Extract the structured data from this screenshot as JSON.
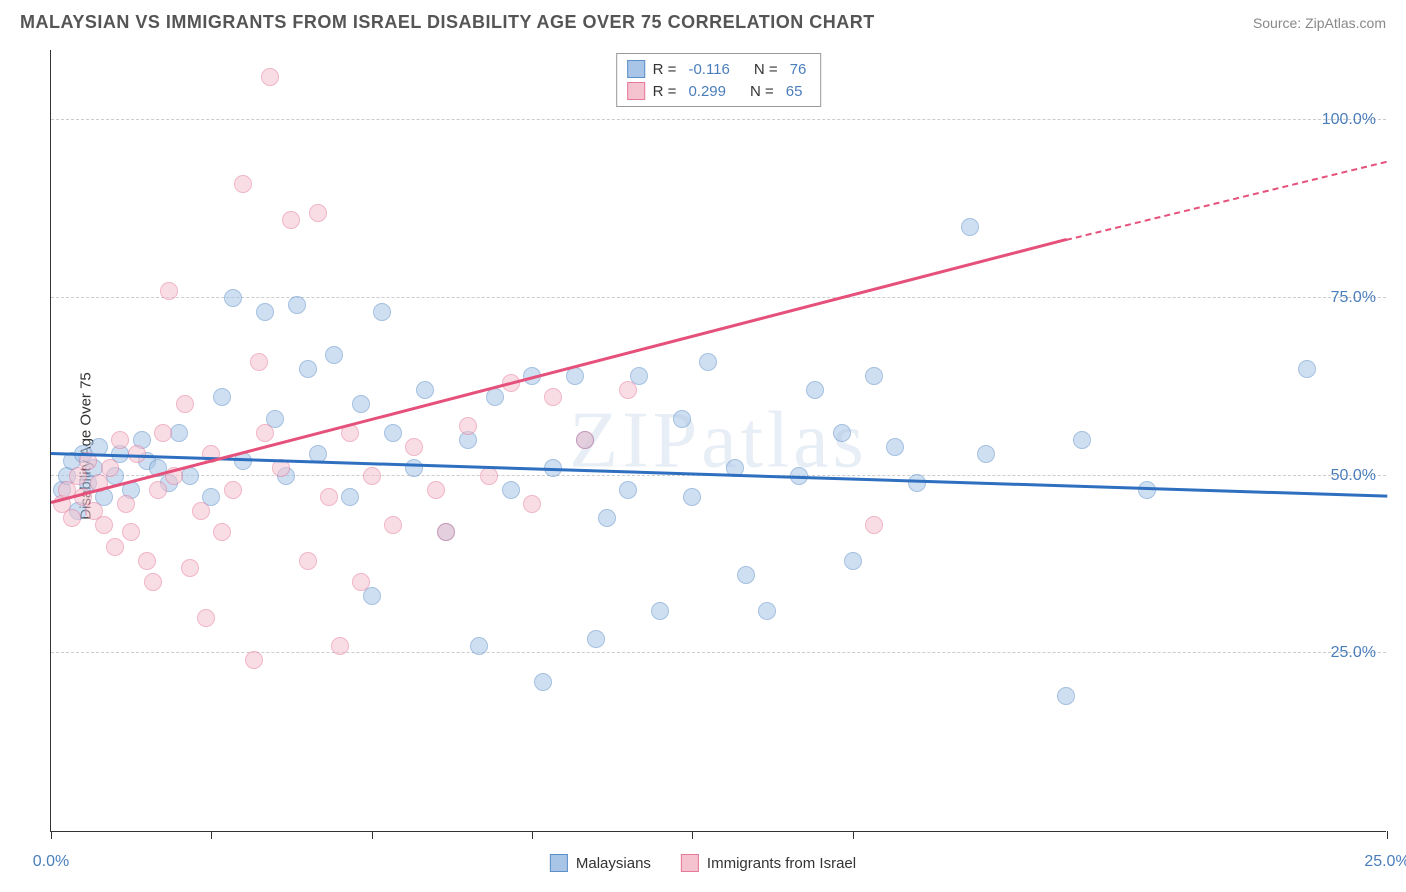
{
  "header": {
    "title": "MALAYSIAN VS IMMIGRANTS FROM ISRAEL DISABILITY AGE OVER 75 CORRELATION CHART",
    "source": "Source: ZipAtlas.com"
  },
  "watermark": "ZIPatlas",
  "chart": {
    "type": "scatter",
    "ylabel": "Disability Age Over 75",
    "xlim": [
      0,
      25
    ],
    "ylim": [
      0,
      110
    ],
    "xticks": [
      0,
      3,
      6,
      9,
      12,
      15,
      25
    ],
    "xtick_labels": {
      "0": "0.0%",
      "25": "25.0%"
    },
    "yticks": [
      25,
      50,
      75,
      100
    ],
    "ytick_labels": [
      "25.0%",
      "50.0%",
      "75.0%",
      "100.0%"
    ],
    "grid_color": "#cccccc",
    "background_color": "#ffffff",
    "marker_radius": 9,
    "marker_opacity": 0.55,
    "series": [
      {
        "name": "Malaysians",
        "color_fill": "#a8c5e8",
        "color_stroke": "#5b8fc7",
        "r": -0.116,
        "n": 76,
        "trend": {
          "x1": 0,
          "y1": 53,
          "x2": 25,
          "y2": 47,
          "color": "#2e6fc0",
          "width": 2.5
        },
        "points": [
          [
            0.2,
            48
          ],
          [
            0.3,
            50
          ],
          [
            0.4,
            52
          ],
          [
            0.5,
            45
          ],
          [
            0.6,
            53
          ],
          [
            0.7,
            49
          ],
          [
            0.8,
            51
          ],
          [
            0.9,
            54
          ],
          [
            1.0,
            47
          ],
          [
            1.2,
            50
          ],
          [
            1.3,
            53
          ],
          [
            1.5,
            48
          ],
          [
            1.7,
            55
          ],
          [
            1.8,
            52
          ],
          [
            2.0,
            51
          ],
          [
            2.2,
            49
          ],
          [
            2.4,
            56
          ],
          [
            2.6,
            50
          ],
          [
            3.0,
            47
          ],
          [
            3.2,
            61
          ],
          [
            3.4,
            75
          ],
          [
            3.6,
            52
          ],
          [
            4.0,
            73
          ],
          [
            4.2,
            58
          ],
          [
            4.4,
            50
          ],
          [
            4.6,
            74
          ],
          [
            4.8,
            65
          ],
          [
            5.0,
            53
          ],
          [
            5.3,
            67
          ],
          [
            5.6,
            47
          ],
          [
            5.8,
            60
          ],
          [
            6.0,
            33
          ],
          [
            6.2,
            73
          ],
          [
            6.4,
            56
          ],
          [
            6.8,
            51
          ],
          [
            7.0,
            62
          ],
          [
            7.4,
            42
          ],
          [
            7.8,
            55
          ],
          [
            8.0,
            26
          ],
          [
            8.3,
            61
          ],
          [
            8.6,
            48
          ],
          [
            9.0,
            64
          ],
          [
            9.2,
            21
          ],
          [
            9.4,
            51
          ],
          [
            9.8,
            64
          ],
          [
            10.0,
            55
          ],
          [
            10.2,
            27
          ],
          [
            10.4,
            44
          ],
          [
            10.8,
            48
          ],
          [
            11.0,
            64
          ],
          [
            11.4,
            31
          ],
          [
            11.8,
            58
          ],
          [
            12.0,
            47
          ],
          [
            12.3,
            66
          ],
          [
            12.8,
            51
          ],
          [
            13.0,
            36
          ],
          [
            13.4,
            31
          ],
          [
            14.0,
            50
          ],
          [
            14.3,
            62
          ],
          [
            14.8,
            56
          ],
          [
            15.0,
            38
          ],
          [
            15.4,
            64
          ],
          [
            15.8,
            54
          ],
          [
            16.2,
            49
          ],
          [
            17.2,
            85
          ],
          [
            17.5,
            53
          ],
          [
            19.0,
            19
          ],
          [
            19.3,
            55
          ],
          [
            20.5,
            48
          ],
          [
            23.5,
            65
          ]
        ]
      },
      {
        "name": "Immigrants from Israel",
        "color_fill": "#f5c2cf",
        "color_stroke": "#e57a9a",
        "r": 0.299,
        "n": 65,
        "trend": {
          "x1": 0,
          "y1": 46,
          "x2": 19,
          "y2": 83,
          "dash_to_x": 25,
          "dash_to_y": 94,
          "color": "#e5517a",
          "width": 2.5
        },
        "points": [
          [
            0.2,
            46
          ],
          [
            0.3,
            48
          ],
          [
            0.4,
            44
          ],
          [
            0.5,
            50
          ],
          [
            0.6,
            47
          ],
          [
            0.7,
            52
          ],
          [
            0.8,
            45
          ],
          [
            0.9,
            49
          ],
          [
            1.0,
            43
          ],
          [
            1.1,
            51
          ],
          [
            1.2,
            40
          ],
          [
            1.3,
            55
          ],
          [
            1.4,
            46
          ],
          [
            1.5,
            42
          ],
          [
            1.6,
            53
          ],
          [
            1.8,
            38
          ],
          [
            1.9,
            35
          ],
          [
            2.0,
            48
          ],
          [
            2.1,
            56
          ],
          [
            2.2,
            76
          ],
          [
            2.3,
            50
          ],
          [
            2.5,
            60
          ],
          [
            2.6,
            37
          ],
          [
            2.8,
            45
          ],
          [
            2.9,
            30
          ],
          [
            3.0,
            53
          ],
          [
            3.2,
            42
          ],
          [
            3.4,
            48
          ],
          [
            3.6,
            91
          ],
          [
            3.8,
            24
          ],
          [
            3.9,
            66
          ],
          [
            4.0,
            56
          ],
          [
            4.1,
            106
          ],
          [
            4.3,
            51
          ],
          [
            4.5,
            86
          ],
          [
            4.8,
            38
          ],
          [
            5.0,
            87
          ],
          [
            5.2,
            47
          ],
          [
            5.4,
            26
          ],
          [
            5.6,
            56
          ],
          [
            5.8,
            35
          ],
          [
            6.0,
            50
          ],
          [
            6.4,
            43
          ],
          [
            6.8,
            54
          ],
          [
            7.2,
            48
          ],
          [
            7.4,
            42
          ],
          [
            7.8,
            57
          ],
          [
            8.2,
            50
          ],
          [
            8.6,
            63
          ],
          [
            9.0,
            46
          ],
          [
            9.4,
            61
          ],
          [
            10.0,
            55
          ],
          [
            10.8,
            62
          ],
          [
            15.4,
            43
          ]
        ]
      }
    ],
    "stats_legend": {
      "rows": [
        {
          "swatch_fill": "#a8c5e8",
          "swatch_stroke": "#5b8fc7",
          "r": "-0.116",
          "n": "76"
        },
        {
          "swatch_fill": "#f5c2cf",
          "swatch_stroke": "#e57a9a",
          "r": "0.299",
          "n": "65"
        }
      ],
      "labels": {
        "r": "R =",
        "n": "N ="
      }
    },
    "series_legend": {
      "items": [
        {
          "swatch_fill": "#a8c5e8",
          "swatch_stroke": "#5b8fc7",
          "label": "Malaysians"
        },
        {
          "swatch_fill": "#f5c2cf",
          "swatch_stroke": "#e57a9a",
          "label": "Immigrants from Israel"
        }
      ]
    }
  }
}
